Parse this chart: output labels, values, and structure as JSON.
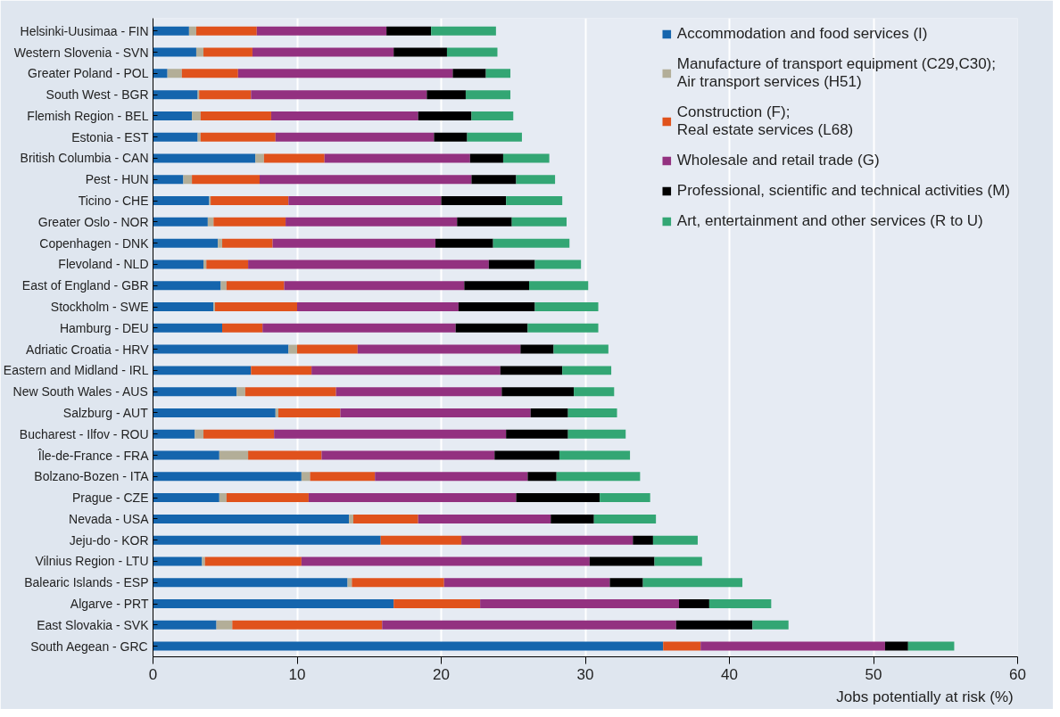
{
  "chart_data": {
    "type": "bar",
    "orientation": "horizontal",
    "stacked": true,
    "xlabel": "Jobs potentially  at risk (%)",
    "categories": [
      "Helsinki-Uusimaa - FIN",
      "Western Slovenia - SVN",
      "Greater Poland - POL",
      "South West - BGR",
      "Flemish Region - BEL",
      "Estonia - EST",
      "British Columbia - CAN",
      "Pest - HUN",
      "Ticino - CHE",
      "Greater Oslo - NOR",
      "Copenhagen - DNK",
      "Flevoland - NLD",
      "East of England - GBR",
      "Stockholm - SWE",
      "Hamburg - DEU",
      "Adriatic Croatia - HRV",
      "Eastern and Midland - IRL",
      "New South Wales - AUS",
      "Salzburg - AUT",
      "Bucharest - Ilfov - ROU",
      "Île-de-France - FRA",
      "Bolzano-Bozen - ITA",
      "Prague - CZE",
      "Nevada - USA",
      "Jeju-do - KOR",
      "Vilnius Region - LTU",
      "Balearic Islands - ESP",
      "Algarve - PRT",
      "East Slovakia - SVK",
      "South Aegean - GRC"
    ],
    "series": [
      {
        "name": "Accommodation and food services (I)",
        "color": "#1565ad",
        "values": [
          2.5,
          3.0,
          1.0,
          3.1,
          2.7,
          3.1,
          7.1,
          2.1,
          3.9,
          3.8,
          4.5,
          3.5,
          4.7,
          4.2,
          4.8,
          9.4,
          6.8,
          5.8,
          8.5,
          2.9,
          4.6,
          10.3,
          4.6,
          13.6,
          15.8,
          3.4,
          13.5,
          16.7,
          4.4,
          35.4
        ]
      },
      {
        "name": "Manufacture of transport equipment (C29,C30);\nAir transport services (H51)",
        "color": "#b3ae98",
        "values": [
          0.5,
          0.5,
          1.0,
          0.1,
          0.6,
          0.2,
          0.6,
          0.6,
          0.1,
          0.4,
          0.3,
          0.2,
          0.4,
          0.1,
          0.0,
          0.6,
          0.0,
          0.6,
          0.2,
          0.6,
          2.0,
          0.6,
          0.5,
          0.3,
          0.0,
          0.2,
          0.3,
          0.0,
          1.1,
          0.0
        ]
      },
      {
        "name": "Construction (F);\nReal estate services (L68)",
        "color": "#e0521c",
        "values": [
          4.2,
          3.4,
          3.9,
          3.6,
          4.9,
          5.2,
          4.2,
          4.7,
          5.4,
          5.0,
          3.5,
          2.9,
          4.0,
          5.7,
          2.8,
          4.2,
          4.2,
          6.3,
          4.3,
          4.9,
          5.1,
          4.5,
          5.7,
          4.5,
          5.6,
          6.7,
          6.4,
          6.0,
          10.4,
          2.6
        ]
      },
      {
        "name": "Wholesale and retail trade (G)",
        "color": "#933180",
        "values": [
          9.0,
          9.8,
          14.9,
          12.2,
          10.2,
          11.0,
          10.1,
          14.7,
          10.6,
          11.9,
          11.3,
          16.7,
          12.5,
          11.2,
          13.4,
          11.3,
          13.1,
          11.5,
          13.2,
          16.1,
          12.0,
          10.6,
          14.4,
          9.2,
          11.9,
          20.0,
          11.5,
          13.8,
          20.4,
          12.8
        ]
      },
      {
        "name": "Professional, scientific and technical activities (M)",
        "color": "#000000",
        "values": [
          3.1,
          3.7,
          2.3,
          2.7,
          3.7,
          2.3,
          2.3,
          3.1,
          4.5,
          3.8,
          4.0,
          3.2,
          4.5,
          5.3,
          5.0,
          2.3,
          4.3,
          5.0,
          2.6,
          4.3,
          4.5,
          2.0,
          5.8,
          3.0,
          1.4,
          4.5,
          2.3,
          2.1,
          5.3,
          1.6
        ]
      },
      {
        "name": "Art, entertainment and other services (R to U)",
        "color": "#33a674",
        "values": [
          4.5,
          3.5,
          1.7,
          3.1,
          2.9,
          3.8,
          3.2,
          2.7,
          3.9,
          3.8,
          5.3,
          3.2,
          4.1,
          4.4,
          4.9,
          3.8,
          3.4,
          2.8,
          3.4,
          4.0,
          4.9,
          5.8,
          3.5,
          4.3,
          3.1,
          3.3,
          6.9,
          4.3,
          2.5,
          3.2
        ]
      }
    ],
    "xlim": [
      0,
      60
    ],
    "xticks": [
      0,
      10,
      20,
      30,
      40,
      50,
      60
    ],
    "grid": "x",
    "legend": "top right"
  }
}
